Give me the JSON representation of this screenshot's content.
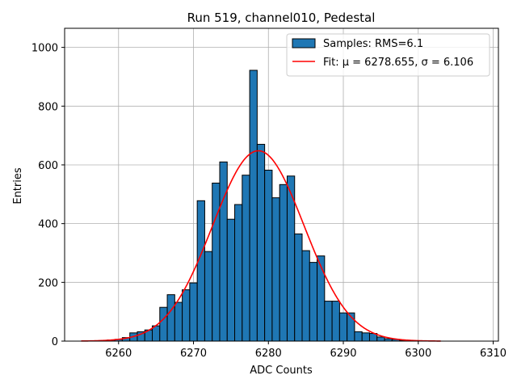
{
  "chart_data": {
    "type": "bar",
    "title": "Run 519, channel010, Pedestal",
    "xlabel": "ADC Counts",
    "ylabel": "Entries",
    "xlim": [
      6252.8,
      6310.7
    ],
    "ylim": [
      0,
      1065
    ],
    "xticks": [
      6260,
      6270,
      6280,
      6290,
      6300,
      6310
    ],
    "yticks": [
      0,
      200,
      400,
      600,
      800,
      1000
    ],
    "grid": true,
    "legend_position": "top-right",
    "colors": {
      "bars": "#1f77b4",
      "fit": "#ff0000"
    },
    "series": [
      {
        "name": "Samples: RMS=6.1",
        "type": "histogram",
        "bin_width": 1,
        "bins": [
          6257,
          6258,
          6259,
          6260,
          6261,
          6262,
          6263,
          6264,
          6265,
          6266,
          6267,
          6268,
          6269,
          6270,
          6271,
          6272,
          6273,
          6274,
          6275,
          6276,
          6277,
          6278,
          6279,
          6280,
          6281,
          6282,
          6283,
          6284,
          6285,
          6286,
          6287,
          6288,
          6289,
          6290,
          6291,
          6292,
          6293,
          6294,
          6295,
          6296,
          6297,
          6298,
          6299,
          6300,
          6301
        ],
        "values": [
          1,
          2,
          4,
          6,
          12,
          28,
          32,
          38,
          52,
          115,
          158,
          132,
          175,
          198,
          478,
          305,
          538,
          610,
          415,
          465,
          565,
          922,
          670,
          582,
          488,
          533,
          562,
          365,
          308,
          268,
          290,
          136,
          136,
          96,
          96,
          32,
          28,
          26,
          14,
          8,
          6,
          3,
          2,
          1,
          1
        ]
      },
      {
        "name": "Fit: μ = 6278.655, σ = 6.106",
        "type": "gaussian",
        "mu": 6278.655,
        "sigma": 6.106,
        "peak": 648,
        "x_range": [
          6255,
          6303
        ]
      }
    ]
  }
}
